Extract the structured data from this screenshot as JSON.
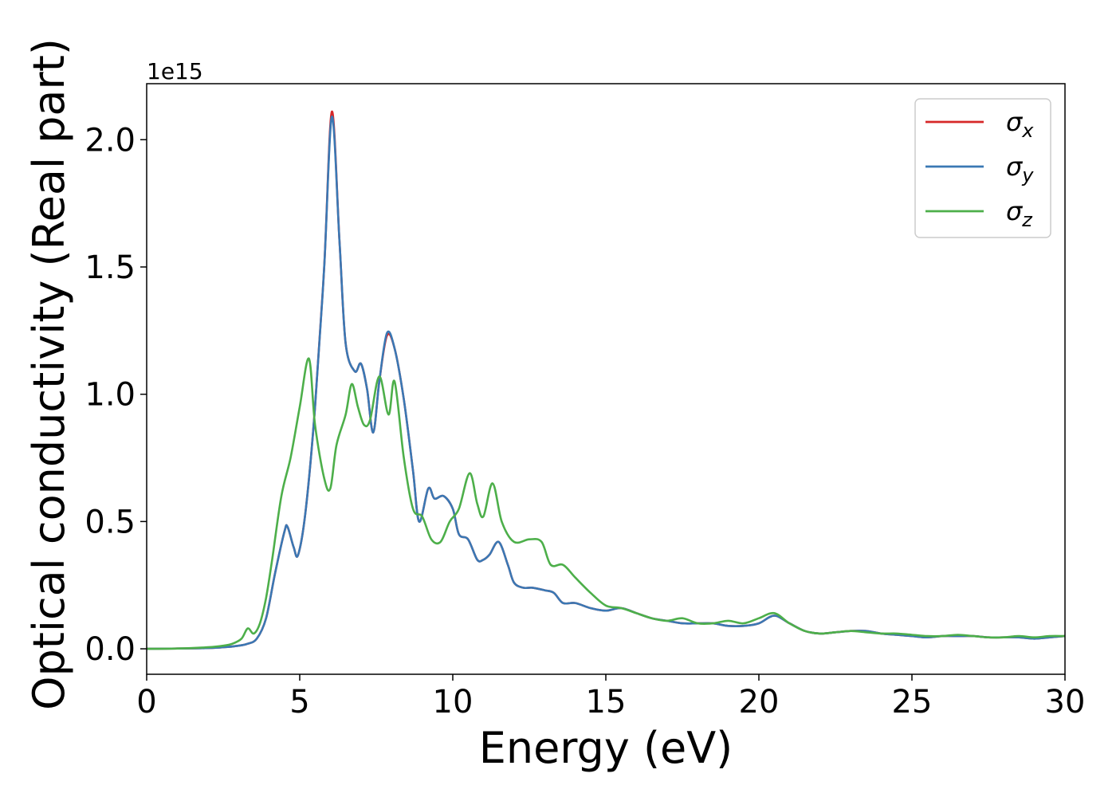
{
  "chart_data": {
    "type": "line",
    "xlabel": "Energy (eV)",
    "ylabel": "Optical conductivity (Real part)",
    "y_offset_label": "1e15",
    "xlim": [
      0,
      30
    ],
    "ylim": [
      -0.1,
      2.22
    ],
    "xticks": [
      0,
      5,
      10,
      15,
      20,
      25,
      30
    ],
    "xtick_labels": [
      "0",
      "5",
      "10",
      "15",
      "20",
      "25",
      "30"
    ],
    "yticks": [
      0.0,
      0.5,
      1.0,
      1.5,
      2.0
    ],
    "ytick_labels": [
      "0.0",
      "0.5",
      "1.0",
      "1.5",
      "2.0"
    ],
    "grid": false,
    "legend_position": "top-right",
    "series": [
      {
        "name": "σx",
        "base": "σ",
        "sub": "x",
        "color": "#d62728",
        "x": [
          0,
          1,
          2,
          2.5,
          3,
          3.3,
          3.6,
          3.9,
          4.2,
          4.5,
          4.6,
          4.8,
          4.95,
          5.2,
          5.5,
          5.8,
          6.05,
          6.3,
          6.5,
          6.8,
          7.0,
          7.2,
          7.4,
          7.6,
          7.85,
          8.1,
          8.4,
          8.7,
          8.9,
          9.2,
          9.4,
          9.7,
          10.0,
          10.2,
          10.5,
          10.8,
          11.0,
          11.2,
          11.5,
          11.8,
          12.0,
          12.3,
          12.6,
          13.0,
          13.3,
          13.6,
          14.0,
          14.5,
          15.0,
          15.5,
          16.0,
          16.5,
          17.0,
          17.5,
          18.0,
          18.5,
          19.0,
          19.5,
          20.0,
          20.5,
          21.0,
          21.5,
          22.0,
          22.5,
          23.0,
          23.5,
          24.0,
          24.5,
          25.0,
          25.5,
          26.0,
          26.5,
          27.0,
          27.5,
          28.0,
          28.5,
          29.0,
          29.5,
          30.0
        ],
        "y": [
          0,
          0.001,
          0.003,
          0.006,
          0.012,
          0.02,
          0.04,
          0.12,
          0.3,
          0.46,
          0.48,
          0.4,
          0.37,
          0.55,
          0.95,
          1.5,
          2.11,
          1.6,
          1.2,
          1.09,
          1.12,
          1.02,
          0.85,
          1.05,
          1.23,
          1.18,
          0.98,
          0.7,
          0.5,
          0.63,
          0.59,
          0.6,
          0.55,
          0.45,
          0.43,
          0.35,
          0.35,
          0.37,
          0.42,
          0.33,
          0.26,
          0.24,
          0.24,
          0.23,
          0.22,
          0.18,
          0.18,
          0.16,
          0.15,
          0.16,
          0.14,
          0.12,
          0.11,
          0.1,
          0.1,
          0.1,
          0.09,
          0.09,
          0.1,
          0.13,
          0.1,
          0.07,
          0.06,
          0.065,
          0.07,
          0.07,
          0.06,
          0.055,
          0.05,
          0.045,
          0.05,
          0.05,
          0.05,
          0.045,
          0.045,
          0.045,
          0.04,
          0.045,
          0.05
        ]
      },
      {
        "name": "σy",
        "base": "σ",
        "sub": "y",
        "color": "#3a78b4",
        "x": [
          0,
          1,
          2,
          2.5,
          3,
          3.3,
          3.6,
          3.9,
          4.2,
          4.5,
          4.6,
          4.8,
          4.95,
          5.2,
          5.5,
          5.8,
          6.05,
          6.3,
          6.5,
          6.8,
          7.0,
          7.2,
          7.4,
          7.6,
          7.85,
          8.1,
          8.4,
          8.7,
          8.9,
          9.2,
          9.4,
          9.7,
          10.0,
          10.2,
          10.5,
          10.8,
          11.0,
          11.2,
          11.5,
          11.8,
          12.0,
          12.3,
          12.6,
          13.0,
          13.3,
          13.6,
          14.0,
          14.5,
          15.0,
          15.5,
          16.0,
          16.5,
          17.0,
          17.5,
          18.0,
          18.5,
          19.0,
          19.5,
          20.0,
          20.5,
          21.0,
          21.5,
          22.0,
          22.5,
          23.0,
          23.5,
          24.0,
          24.5,
          25.0,
          25.5,
          26.0,
          26.5,
          27.0,
          27.5,
          28.0,
          28.5,
          29.0,
          29.5,
          30.0
        ],
        "y": [
          0,
          0.001,
          0.003,
          0.006,
          0.012,
          0.02,
          0.04,
          0.12,
          0.3,
          0.46,
          0.48,
          0.4,
          0.37,
          0.55,
          0.95,
          1.5,
          2.09,
          1.6,
          1.2,
          1.09,
          1.12,
          1.02,
          0.85,
          1.05,
          1.24,
          1.18,
          0.98,
          0.7,
          0.5,
          0.63,
          0.59,
          0.6,
          0.55,
          0.45,
          0.43,
          0.35,
          0.35,
          0.37,
          0.42,
          0.33,
          0.26,
          0.24,
          0.24,
          0.23,
          0.22,
          0.18,
          0.18,
          0.16,
          0.15,
          0.16,
          0.14,
          0.12,
          0.11,
          0.1,
          0.1,
          0.1,
          0.09,
          0.09,
          0.1,
          0.13,
          0.1,
          0.07,
          0.06,
          0.065,
          0.07,
          0.07,
          0.06,
          0.055,
          0.05,
          0.045,
          0.05,
          0.05,
          0.05,
          0.045,
          0.045,
          0.045,
          0.04,
          0.045,
          0.05
        ]
      },
      {
        "name": "σz",
        "base": "σ",
        "sub": "z",
        "color": "#4daf4a",
        "x": [
          0,
          1,
          2,
          2.5,
          2.8,
          3.1,
          3.3,
          3.5,
          3.7,
          3.9,
          4.1,
          4.4,
          4.7,
          5.0,
          5.3,
          5.5,
          5.8,
          6.0,
          6.2,
          6.5,
          6.7,
          6.9,
          7.1,
          7.3,
          7.6,
          7.9,
          8.1,
          8.4,
          8.7,
          9.0,
          9.3,
          9.6,
          9.9,
          10.2,
          10.55,
          10.8,
          11.0,
          11.3,
          11.6,
          12.0,
          12.5,
          12.9,
          13.2,
          13.6,
          14.0,
          14.5,
          15.0,
          15.5,
          16.0,
          16.5,
          17.0,
          17.5,
          18.0,
          18.5,
          19.0,
          19.5,
          20.0,
          20.5,
          21.0,
          21.5,
          22.0,
          22.5,
          23.0,
          23.5,
          24.0,
          24.5,
          25.0,
          25.5,
          26.0,
          26.5,
          27.0,
          27.5,
          28.0,
          28.5,
          29.0,
          29.5,
          30.0
        ],
        "y": [
          0,
          0.001,
          0.006,
          0.012,
          0.02,
          0.04,
          0.08,
          0.06,
          0.1,
          0.2,
          0.35,
          0.6,
          0.75,
          0.95,
          1.14,
          0.88,
          0.67,
          0.63,
          0.8,
          0.92,
          1.04,
          0.95,
          0.88,
          0.9,
          1.07,
          0.92,
          1.05,
          0.75,
          0.55,
          0.52,
          0.43,
          0.42,
          0.5,
          0.55,
          0.69,
          0.57,
          0.52,
          0.65,
          0.5,
          0.42,
          0.43,
          0.42,
          0.33,
          0.33,
          0.28,
          0.22,
          0.17,
          0.16,
          0.14,
          0.12,
          0.11,
          0.12,
          0.1,
          0.1,
          0.11,
          0.1,
          0.12,
          0.14,
          0.1,
          0.07,
          0.06,
          0.065,
          0.07,
          0.065,
          0.06,
          0.06,
          0.055,
          0.05,
          0.05,
          0.055,
          0.05,
          0.045,
          0.045,
          0.05,
          0.045,
          0.05,
          0.05
        ]
      }
    ]
  }
}
